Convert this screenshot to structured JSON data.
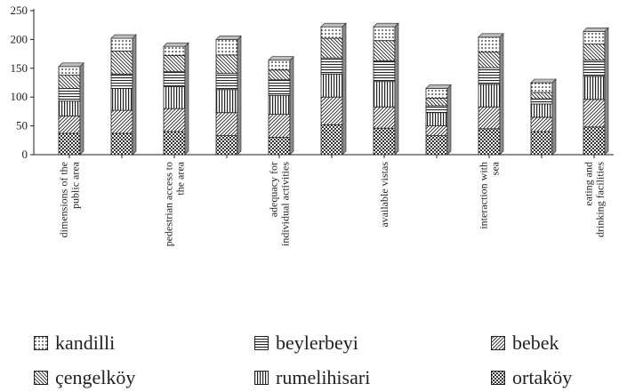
{
  "chart_data": {
    "type": "bar",
    "stacked": true,
    "categories": [
      "dimensions of the public area",
      "",
      "pedestrian access to the area",
      "",
      "adequacy for individual activities",
      "",
      "available vistas",
      "",
      "interaction with sea",
      "",
      "eating and drinking facilities"
    ],
    "ylim": [
      0,
      250
    ],
    "yticks": [
      "0",
      "50",
      "100",
      "150",
      "200",
      "250"
    ],
    "grid": false,
    "legend_position": "bottom",
    "series": [
      {
        "name": "ortaköy",
        "pattern": "checker",
        "values": [
          37,
          37,
          40,
          33,
          30,
          52,
          46,
          33,
          45,
          40,
          48
        ]
      },
      {
        "name": "bebek",
        "pattern": "diagonal",
        "values": [
          30,
          40,
          40,
          40,
          40,
          48,
          37,
          17,
          38,
          25,
          48
        ]
      },
      {
        "name": "rumelihisari",
        "pattern": "vertical",
        "values": [
          26,
          38,
          38,
          40,
          33,
          40,
          44,
          23,
          39,
          23,
          40
        ]
      },
      {
        "name": "beylerbeyi",
        "pattern": "horizontal",
        "values": [
          22,
          25,
          26,
          28,
          27,
          28,
          36,
          12,
          29,
          9,
          28
        ]
      },
      {
        "name": "çengelköy",
        "pattern": "diagonal-back",
        "values": [
          23,
          40,
          28,
          32,
          17,
          34,
          35,
          13,
          27,
          11,
          28
        ]
      },
      {
        "name": "kandilli",
        "pattern": "dots",
        "values": [
          15,
          22,
          16,
          27,
          17,
          20,
          24,
          17,
          26,
          17,
          22
        ]
      }
    ]
  },
  "legend": {
    "items": [
      {
        "label": "kandilli",
        "pattern": "dots"
      },
      {
        "label": "beylerbeyi",
        "pattern": "horizontal"
      },
      {
        "label": "bebek",
        "pattern": "diagonal"
      },
      {
        "label": "çengelköy",
        "pattern": "diagonal-back"
      },
      {
        "label": "rumelihisari",
        "pattern": "vertical"
      },
      {
        "label": "ortaköy",
        "pattern": "checker"
      }
    ]
  },
  "colors": {
    "ink": "#222222",
    "fill": "#ffffff"
  }
}
